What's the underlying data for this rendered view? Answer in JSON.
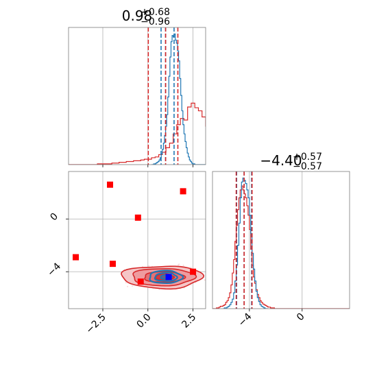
{
  "chart_data": {
    "type": "corner",
    "panels": [
      {
        "id": "hist_param1",
        "type": "histogram",
        "title_main": "0.98",
        "title_sup": "+0.68",
        "title_sub": "−0.96",
        "xlim": [
          -4.4,
          3.2
        ],
        "xticks": [
          -2.5,
          0.0,
          2.5
        ],
        "grid": true,
        "series": [
          {
            "color": "#1f77b4",
            "bin_start": 0.2,
            "bin_width": 0.06,
            "counts": [
              0,
              0,
              1,
              1,
              2,
              3,
              4,
              6,
              9,
              14,
              20,
              28,
              38,
              50,
              65,
              88,
              115,
              140,
              160,
              168,
              166,
              170,
              162,
              158,
              148,
              135,
              112,
              90,
              70,
              52,
              40,
              30,
              22,
              15,
              10,
              6,
              4,
              2,
              1,
              1,
              0,
              0,
              0,
              0,
              0,
              0,
              0,
              0,
              0,
              0
            ],
            "quantiles": [
              0.73,
              0.98,
              1.45
            ]
          },
          {
            "color": "#d62728",
            "bin_start": -4.4,
            "bin_width": 0.2,
            "counts": [
              0,
              0,
              0,
              0,
              0,
              0,
              0,
              0,
              1,
              1,
              1,
              1,
              2,
              2,
              3,
              3,
              4,
              4,
              5,
              5,
              6,
              7,
              7,
              9,
              10,
              13,
              16,
              22,
              28,
              40,
              52,
              60,
              58,
              75,
              80,
              74,
              70,
              62,
              50,
              30,
              16,
              8,
              3,
              1,
              0,
              0,
              0,
              0
            ],
            "quantiles": [
              0.02,
              0.98,
              1.66
            ]
          }
        ]
      },
      {
        "id": "joint",
        "type": "contour2d",
        "xlim": [
          -4.4,
          3.2
        ],
        "ylim": [
          -6.8,
          3.6
        ],
        "xticks": [
          -2.5,
          0.0,
          2.5
        ],
        "yticks": [
          0,
          -4
        ],
        "xtick_labels": [
          "−2.5",
          "0.0",
          "2.5"
        ],
        "ytick_labels": [
          "0",
          "−4"
        ],
        "grid": true,
        "contours": [
          {
            "color": "#d62728",
            "center": [
              0.98,
              -4.4
            ],
            "levels": [
              [
                2.2,
                0.85
              ],
              [
                1.7,
                0.65
              ],
              [
                1.1,
                0.4
              ],
              [
                0.5,
                0.22
              ]
            ]
          },
          {
            "color": "#1f77b4",
            "center": [
              1.05,
              -4.4
            ],
            "levels": [
              [
                0.9,
                0.48
              ],
              [
                0.6,
                0.32
              ],
              [
                0.3,
                0.17
              ]
            ]
          }
        ],
        "markers": [
          {
            "x": -2.1,
            "y": 2.6,
            "color": "#ff0000"
          },
          {
            "x": 1.95,
            "y": 2.1,
            "color": "#ff0000"
          },
          {
            "x": -0.55,
            "y": 0.1,
            "color": "#ff0000"
          },
          {
            "x": -4.0,
            "y": -2.9,
            "color": "#ff0000"
          },
          {
            "x": -1.95,
            "y": -3.4,
            "color": "#ff0000"
          },
          {
            "x": -0.4,
            "y": -4.75,
            "color": "#ff0000"
          },
          {
            "x": 2.5,
            "y": -4.0,
            "color": "#ff0000"
          },
          {
            "x": 1.15,
            "y": -4.4,
            "color": "#0000ff"
          }
        ]
      },
      {
        "id": "hist_param2",
        "type": "histogram",
        "title_main": "−4.40",
        "title_sup": "+0.57",
        "title_sub": "−0.57",
        "xlim": [
          -6.8,
          3.6
        ],
        "xticks": [
          -4,
          0
        ],
        "xtick_labels": [
          "−4",
          "0"
        ],
        "grid": true,
        "series": [
          {
            "color": "#1f77b4",
            "bin_start": -6.0,
            "bin_width": 0.1,
            "counts": [
              0,
              1,
              1,
              2,
              3,
              5,
              8,
              12,
              20,
              35,
              55,
              80,
              108,
              140,
              160,
              165,
              162,
              158,
              150,
              140,
              118,
              95,
              70,
              50,
              35,
              22,
              14,
              9,
              5,
              3,
              2,
              1,
              0,
              0
            ],
            "quantiles": [
              -4.97,
              -4.4,
              -3.83
            ]
          },
          {
            "color": "#d62728",
            "bin_start": -6.8,
            "bin_width": 0.1,
            "counts": [
              0,
              0,
              0,
              1,
              1,
              2,
              3,
              3,
              4,
              5,
              8,
              10,
              14,
              20,
              30,
              45,
              62,
              85,
              105,
              125,
              140,
              150,
              155,
              150,
              145,
              140,
              130,
              118,
              100,
              75,
              55,
              40,
              32,
              24,
              18,
              14,
              10,
              8,
              6,
              5,
              4,
              3,
              2,
              2,
              1,
              1,
              1,
              0,
              0,
              0,
              0,
              0,
              0,
              0,
              0,
              0,
              0,
              0,
              0,
              0,
              0,
              0,
              0,
              0,
              0,
              0,
              0,
              0,
              0,
              0,
              0,
              0,
              0,
              0,
              0,
              0,
              0,
              0,
              0,
              0,
              0,
              0,
              0,
              0,
              0,
              0,
              0,
              0,
              0,
              0,
              0,
              0,
              0,
              0,
              0,
              0,
              0,
              0,
              0,
              0,
              0,
              0,
              0,
              0
            ],
            "quantiles": [
              -5.0,
              -4.4,
              -3.8
            ]
          }
        ]
      }
    ]
  }
}
